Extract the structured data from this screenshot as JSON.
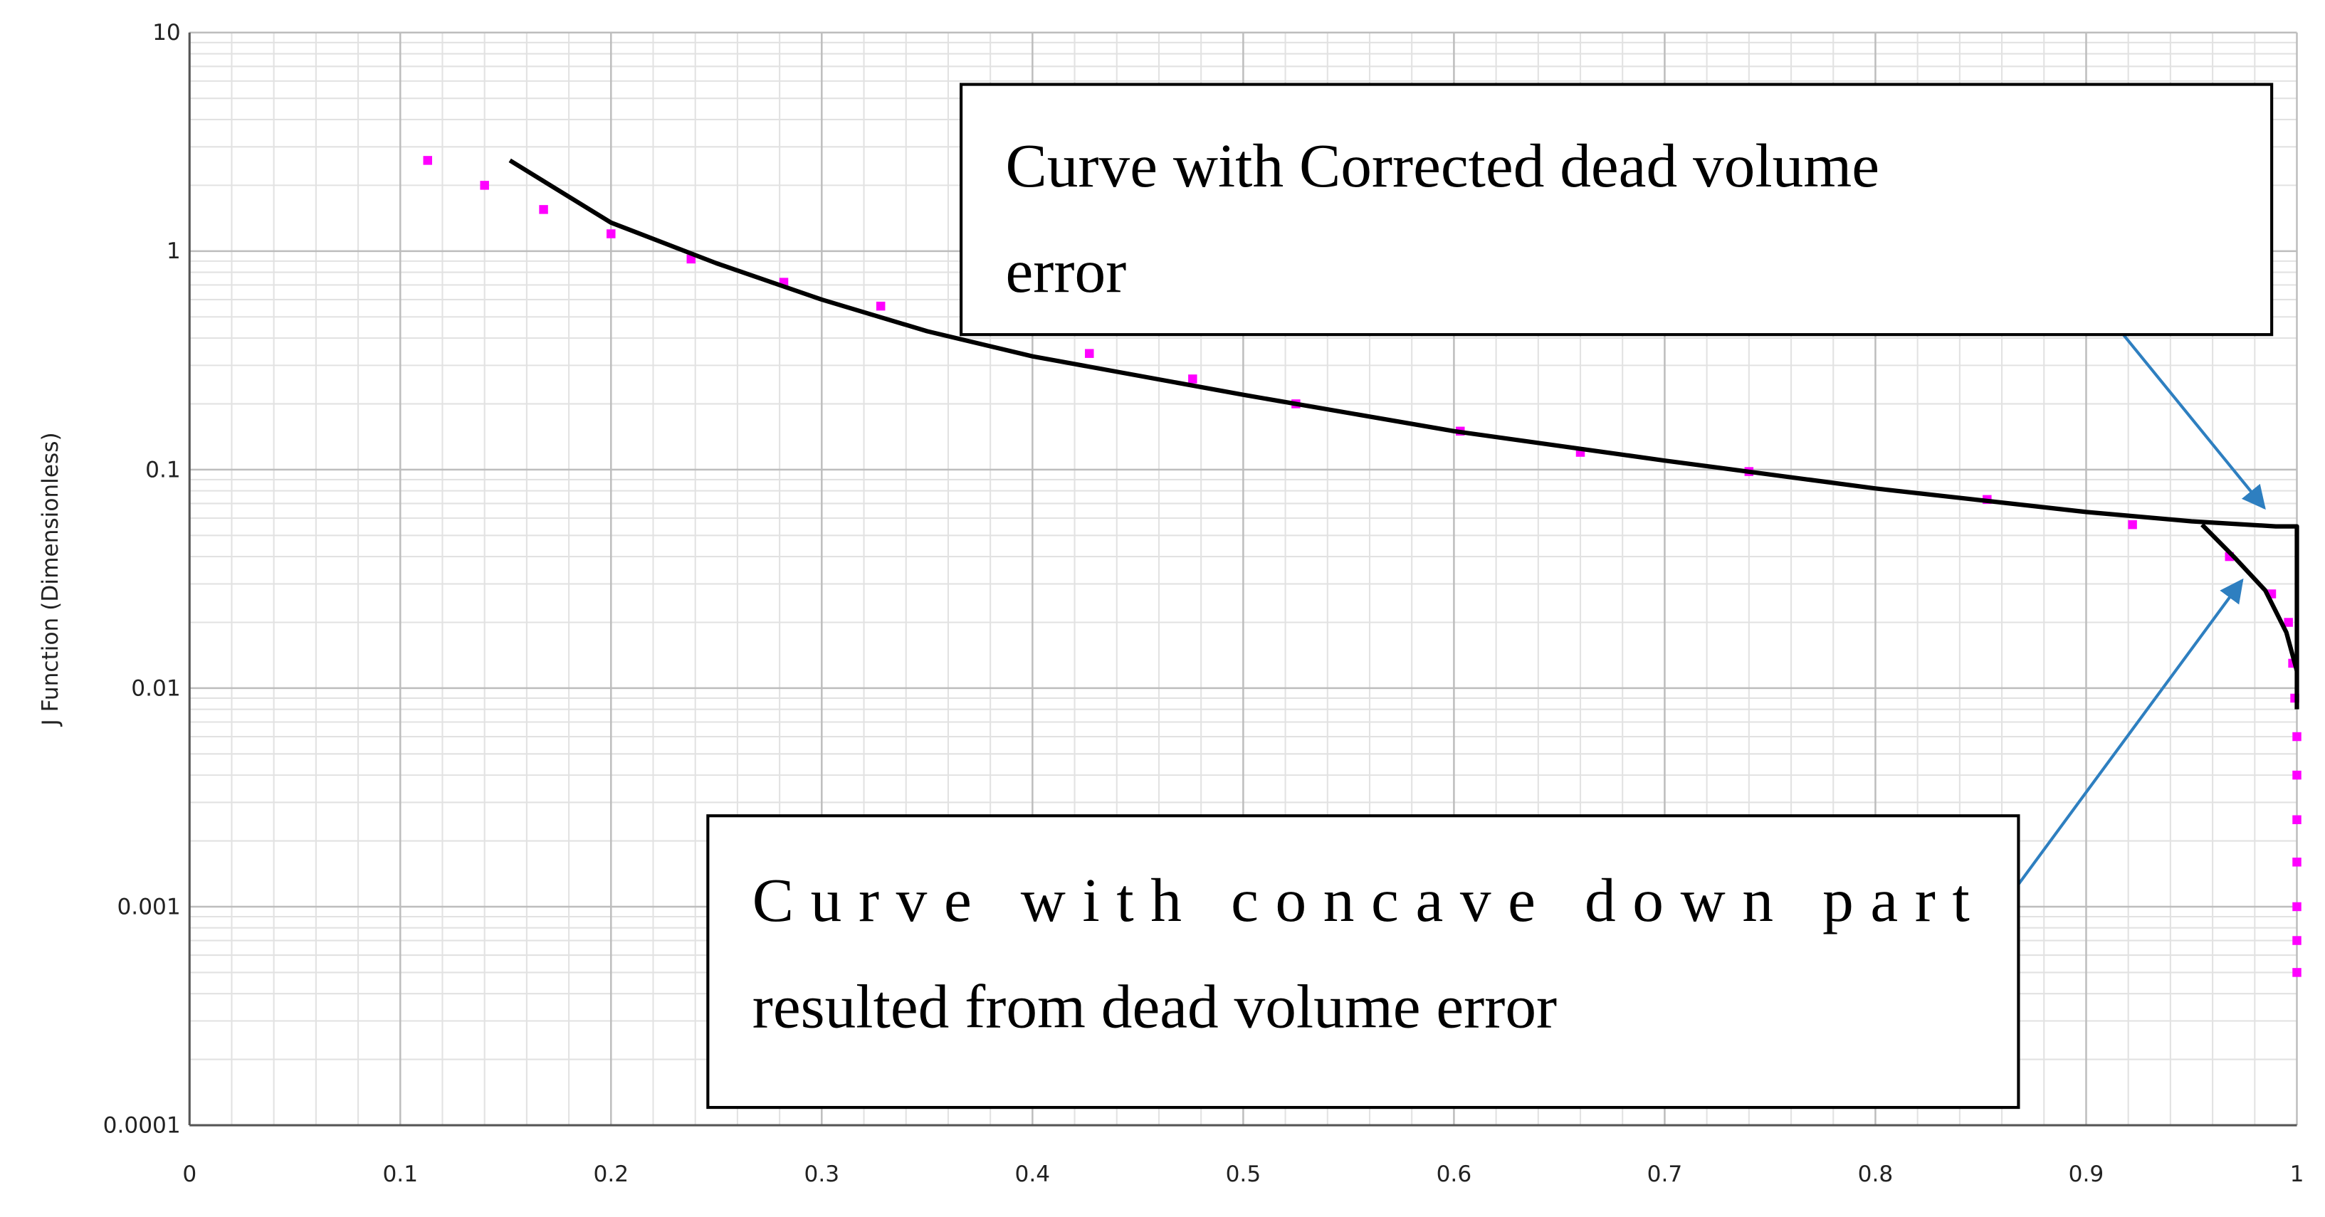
{
  "chart_data": {
    "type": "line",
    "y_label": "J Function (Dimensionless)",
    "xlim": [
      0,
      1
    ],
    "ylim": [
      0.0001,
      10
    ],
    "log_y": true,
    "xticks": [
      0,
      0.1,
      0.2,
      0.3,
      0.4,
      0.5,
      0.6,
      0.7,
      0.8,
      0.9,
      1
    ],
    "yticks": [
      0.0001,
      0.001,
      0.01,
      0.1,
      1,
      10
    ],
    "grid": true,
    "minor_grid": true,
    "series": [
      {
        "type": "scatter",
        "color": "#ff00ff",
        "x": [
          0.113,
          0.14,
          0.168,
          0.2,
          0.238,
          0.282,
          0.328,
          0.427,
          0.476,
          0.525,
          0.603,
          0.66,
          0.74,
          0.853,
          0.922,
          0.968,
          0.988,
          0.996,
          0.998,
          0.999,
          1,
          1,
          1,
          1,
          1,
          1,
          1
        ],
        "y": [
          2.6,
          2.0,
          1.55,
          1.2,
          0.92,
          0.72,
          0.56,
          0.34,
          0.26,
          0.2,
          0.15,
          0.12,
          0.098,
          0.073,
          0.056,
          0.04,
          0.027,
          0.02,
          0.013,
          0.009,
          0.006,
          0.004,
          0.0025,
          0.0016,
          0.001,
          0.0007,
          0.0005
        ]
      },
      {
        "type": "line",
        "color": "#000000",
        "x": [
          0.152,
          0.2,
          0.25,
          0.3,
          0.35,
          0.4,
          0.5,
          0.6,
          0.7,
          0.8,
          0.9,
          0.95,
          0.99,
          1,
          1
        ],
        "y": [
          2.6,
          1.35,
          0.88,
          0.6,
          0.43,
          0.33,
          0.22,
          0.15,
          0.11,
          0.082,
          0.064,
          0.058,
          0.055,
          0.055,
          0.008
        ]
      },
      {
        "type": "line",
        "color": "#000000",
        "x": [
          0.955,
          0.97,
          0.985,
          0.995,
          1
        ],
        "y": [
          0.056,
          0.04,
          0.028,
          0.018,
          0.012
        ]
      }
    ],
    "annotations": [
      [
        "Curve with Corrected dead volume",
        "error"
      ],
      [
        "Curve with concave down part",
        "resulted from dead volume error"
      ]
    ]
  }
}
